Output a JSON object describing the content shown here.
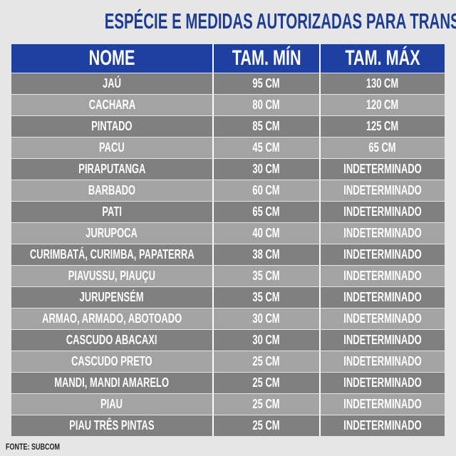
{
  "header": {
    "title": "ESPÉCIE E MEDIDAS AUTORIZADAS PARA TRANSPORTE"
  },
  "table": {
    "columns": [
      "NOME",
      "TAM. MÍN",
      "TAM. MÁX"
    ],
    "rows": [
      [
        "JAÚ",
        "95 CM",
        "130 CM"
      ],
      [
        "CACHARA",
        "80 CM",
        "120 CM"
      ],
      [
        "PINTADO",
        "85 CM",
        "125 CM"
      ],
      [
        "PACU",
        "45 CM",
        "65 CM"
      ],
      [
        "PIRAPUTANGA",
        "30 CM",
        "INDETERMINADO"
      ],
      [
        "BARBADO",
        "60 CM",
        "INDETERMINADO"
      ],
      [
        "PATI",
        "65 CM",
        "INDETERMINADO"
      ],
      [
        "JURUPOCA",
        "40 CM",
        "INDETERMINADO"
      ],
      [
        "CURIMBATÁ, CURIMBA, PAPATERRA",
        "38 CM",
        "INDETERMINADO"
      ],
      [
        "PIAVUSSU, PIAUÇU",
        "35 CM",
        "INDETERMINADO"
      ],
      [
        "JURUPENSÉM",
        "35 CM",
        "INDETERMINADO"
      ],
      [
        "ARMAO, ARMADO, ABOTOADO",
        "30 CM",
        "INDETERMINADO"
      ],
      [
        "CASCUDO ABACAXI",
        "30 CM",
        "INDETERMINADO"
      ],
      [
        "CASCUDO PRETO",
        "25 CM",
        "INDETERMINADO"
      ],
      [
        "MANDI, MANDI AMARELO",
        "25 CM",
        "INDETERMINADO"
      ],
      [
        "PIAU",
        "25 CM",
        "INDETERMINADO"
      ],
      [
        "PIAU TRÊS PINTAS",
        "25 CM",
        "INDETERMINADO"
      ]
    ]
  },
  "footer": {
    "source": "FONTE: SUBCOM"
  }
}
